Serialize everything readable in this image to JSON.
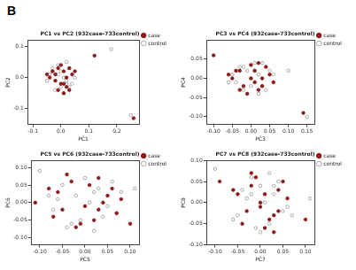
{
  "panel_label": "B",
  "chart_data": [
    {
      "type": "scatter",
      "title": "PC1 vs PC2 (932case-733control)",
      "x_label": "PC1",
      "y_label": "PC2",
      "xlim": [
        -0.12,
        0.28
      ],
      "xticks": [
        -0.1,
        {
          "value": 0,
          "label": "0.0"
        },
        0.1,
        0.2
      ],
      "ylim": [
        -0.15,
        0.12
      ],
      "yticks": [
        -0.1,
        {
          "value": 0,
          "label": "0.0"
        },
        0.1
      ],
      "grid": false,
      "legend": "right",
      "series": [
        {
          "name": "case",
          "color": "#8b1a1a",
          "marker": "filled_circle",
          "x": [
            -0.02,
            0.01,
            0.03,
            -0.04,
            0.0,
            0.02,
            -0.01,
            0.04,
            -0.03,
            0.01,
            -0.02,
            0.02,
            0.0,
            -0.05,
            0.03,
            0.05,
            -0.01,
            0.01,
            0.12,
            0.26
          ],
          "y": [
            0.01,
            -0.02,
            0.03,
            0.0,
            0.04,
            -0.03,
            -0.04,
            0.01,
            0.02,
            0.02,
            -0.01,
            0.0,
            -0.02,
            0.01,
            -0.04,
            0.02,
            0.03,
            -0.05,
            0.07,
            -0.13
          ]
        },
        {
          "name": "control",
          "color": "#999999",
          "marker": "open_circle",
          "x": [
            0.01,
            -0.03,
            0.02,
            -0.01,
            0.04,
            0.0,
            -0.04,
            0.03,
            -0.02,
            0.02,
            -0.05,
            0.01,
            0.0,
            0.05,
            -0.03,
            0.02,
            -0.01,
            0.03,
            0.18,
            0.25
          ],
          "y": [
            0.0,
            0.02,
            -0.01,
            0.04,
            -0.02,
            -0.03,
            0.01,
            0.03,
            -0.04,
            0.05,
            -0.01,
            -0.05,
            0.02,
            0.0,
            0.03,
            -0.02,
            0.01,
            -0.03,
            0.09,
            -0.12
          ]
        }
      ]
    },
    {
      "type": "scatter",
      "title": "PC3 vs PC4 (932case-733control)",
      "x_label": "PC3",
      "y_label": "PC4",
      "xlim": [
        -0.12,
        0.17
      ],
      "xticks": [
        {
          "value": -0.1,
          "label": "-0.10"
        },
        -0.05,
        {
          "value": 0,
          "label": "0.00"
        },
        0.05,
        {
          "value": 0.1,
          "label": "0.10"
        },
        0.15
      ],
      "ylim": [
        -0.12,
        0.1
      ],
      "yticks": [
        {
          "value": -0.1,
          "label": "-0.10"
        },
        -0.05,
        {
          "value": 0,
          "label": "0.00"
        },
        0.05
      ],
      "grid": false,
      "legend": "right",
      "series": [
        {
          "name": "case",
          "color": "#8b1a1a",
          "marker": "filled_circle",
          "x": [
            -0.03,
            0.01,
            0.04,
            -0.05,
            0.0,
            0.02,
            -0.02,
            0.05,
            -0.04,
            0.03,
            -0.01,
            0.02,
            0.06,
            -0.06,
            0.01,
            -0.03,
            0.03,
            0.0,
            -0.1,
            0.14
          ],
          "y": [
            0.02,
            -0.01,
            0.03,
            0.0,
            0.035,
            -0.03,
            -0.02,
            0.01,
            0.02,
            0.0,
            -0.04,
            0.04,
            -0.01,
            0.01,
            0.02,
            -0.03,
            -0.02,
            0.0,
            0.06,
            -0.09
          ]
        },
        {
          "name": "control",
          "color": "#999999",
          "marker": "open_circle",
          "x": [
            0.0,
            -0.02,
            0.03,
            -0.04,
            0.05,
            0.01,
            -0.05,
            0.02,
            -0.01,
            0.04,
            -0.03,
            0.06,
            0.0,
            0.02,
            -0.06,
            0.03,
            -0.02,
            0.01,
            0.1,
            0.15
          ],
          "y": [
            0.0,
            0.03,
            -0.02,
            -0.01,
            0.02,
            0.04,
            0.01,
            -0.04,
            0.02,
            -0.03,
            0.03,
            0.01,
            -0.02,
            0.01,
            -0.01,
            0.04,
            -0.03,
            0.02,
            0.02,
            -0.1
          ]
        }
      ]
    },
    {
      "type": "scatter",
      "title": "PC5 vs PC6 (932case-733control)",
      "x_label": "PC5",
      "y_label": "PC6",
      "xlim": [
        -0.12,
        0.12
      ],
      "xticks": [
        {
          "value": -0.1,
          "label": "-0.10"
        },
        -0.05,
        {
          "value": 0,
          "label": "0.00"
        },
        0.05,
        {
          "value": 0.1,
          "label": "0.10"
        }
      ],
      "ylim": [
        -0.12,
        0.12
      ],
      "yticks": [
        {
          "value": -0.1,
          "label": "-0.10"
        },
        -0.05,
        {
          "value": 0,
          "label": "0.00"
        },
        0.05,
        {
          "value": 0.1,
          "label": "0.10"
        }
      ],
      "grid": false,
      "legend": "right",
      "series": [
        {
          "name": "case",
          "color": "#8b1a1a",
          "marker": "filled_circle",
          "x": [
            -0.06,
            0.02,
            0.05,
            -0.03,
            0.0,
            0.07,
            -0.08,
            0.03,
            -0.01,
            0.04,
            -0.05,
            0.01,
            0.06,
            -0.02,
            0.08,
            -0.07,
            0.03,
            -0.04,
            -0.11,
            0.1
          ],
          "y": [
            0.03,
            -0.05,
            0.02,
            0.06,
            -0.01,
            -0.03,
            0.04,
            0.07,
            -0.06,
            0.0,
            -0.02,
            0.05,
            0.04,
            -0.07,
            0.01,
            -0.04,
            -0.02,
            0.08,
            0.0,
            -0.06
          ]
        },
        {
          "name": "control",
          "color": "#999999",
          "marker": "open_circle",
          "x": [
            0.01,
            -0.05,
            0.04,
            -0.02,
            0.06,
            -0.07,
            0.02,
            -0.03,
            0.05,
            0.0,
            -0.06,
            0.03,
            -0.01,
            0.07,
            -0.04,
            0.08,
            -0.08,
            0.02,
            0.11,
            -0.1
          ],
          "y": [
            0.0,
            0.05,
            -0.04,
            0.02,
            0.06,
            -0.02,
            0.03,
            -0.06,
            -0.01,
            0.07,
            0.01,
            0.04,
            -0.05,
            -0.03,
            -0.07,
            0.03,
            0.02,
            -0.08,
            0.04,
            0.09
          ]
        }
      ]
    },
    {
      "type": "scatter",
      "title": "PC7 vs PC8 (932case-733control)",
      "x_label": "PC7",
      "y_label": "PC8",
      "xlim": [
        -0.12,
        0.12
      ],
      "xticks": [
        {
          "value": -0.1,
          "label": "-0.10"
        },
        -0.05,
        {
          "value": 0,
          "label": "0.00"
        },
        0.05,
        {
          "value": 0.1,
          "label": "0.10"
        }
      ],
      "ylim": [
        -0.1,
        0.1
      ],
      "yticks": [
        {
          "value": -0.1,
          "label": "-0.10"
        },
        -0.05,
        {
          "value": 0,
          "label": "0.00"
        },
        0.05,
        {
          "value": 0.1,
          "label": "0.10"
        }
      ],
      "grid": false,
      "legend": "right",
      "series": [
        {
          "name": "case",
          "color": "#8b1a1a",
          "marker": "filled_circle",
          "x": [
            -0.02,
            0.03,
            0.0,
            -0.05,
            0.05,
            0.01,
            -0.03,
            0.04,
            -0.01,
            0.02,
            -0.04,
            0.06,
            0.0,
            -0.06,
            0.03,
            -0.02,
            0.01,
            0.04,
            -0.09,
            0.1
          ],
          "y": [
            0.04,
            -0.03,
            0.0,
            0.02,
            0.05,
            -0.06,
            -0.02,
            0.03,
            0.06,
            -0.04,
            -0.05,
            0.01,
            -0.01,
            0.03,
            -0.07,
            0.07,
            0.02,
            -0.02,
            0.05,
            -0.04
          ]
        },
        {
          "name": "control",
          "color": "#999999",
          "marker": "open_circle",
          "x": [
            0.01,
            -0.04,
            0.02,
            -0.02,
            0.05,
            0.0,
            -0.05,
            0.03,
            -0.01,
            0.04,
            -0.03,
            0.06,
            -0.06,
            0.02,
            0.0,
            -0.02,
            0.03,
            0.07,
            0.11,
            -0.1
          ],
          "y": [
            0.0,
            0.03,
            -0.05,
            0.06,
            -0.02,
            0.04,
            -0.03,
            0.02,
            -0.06,
            0.05,
            0.01,
            -0.01,
            -0.04,
            0.07,
            -0.07,
            0.02,
            0.04,
            -0.03,
            0.01,
            0.08
          ]
        }
      ]
    }
  ]
}
